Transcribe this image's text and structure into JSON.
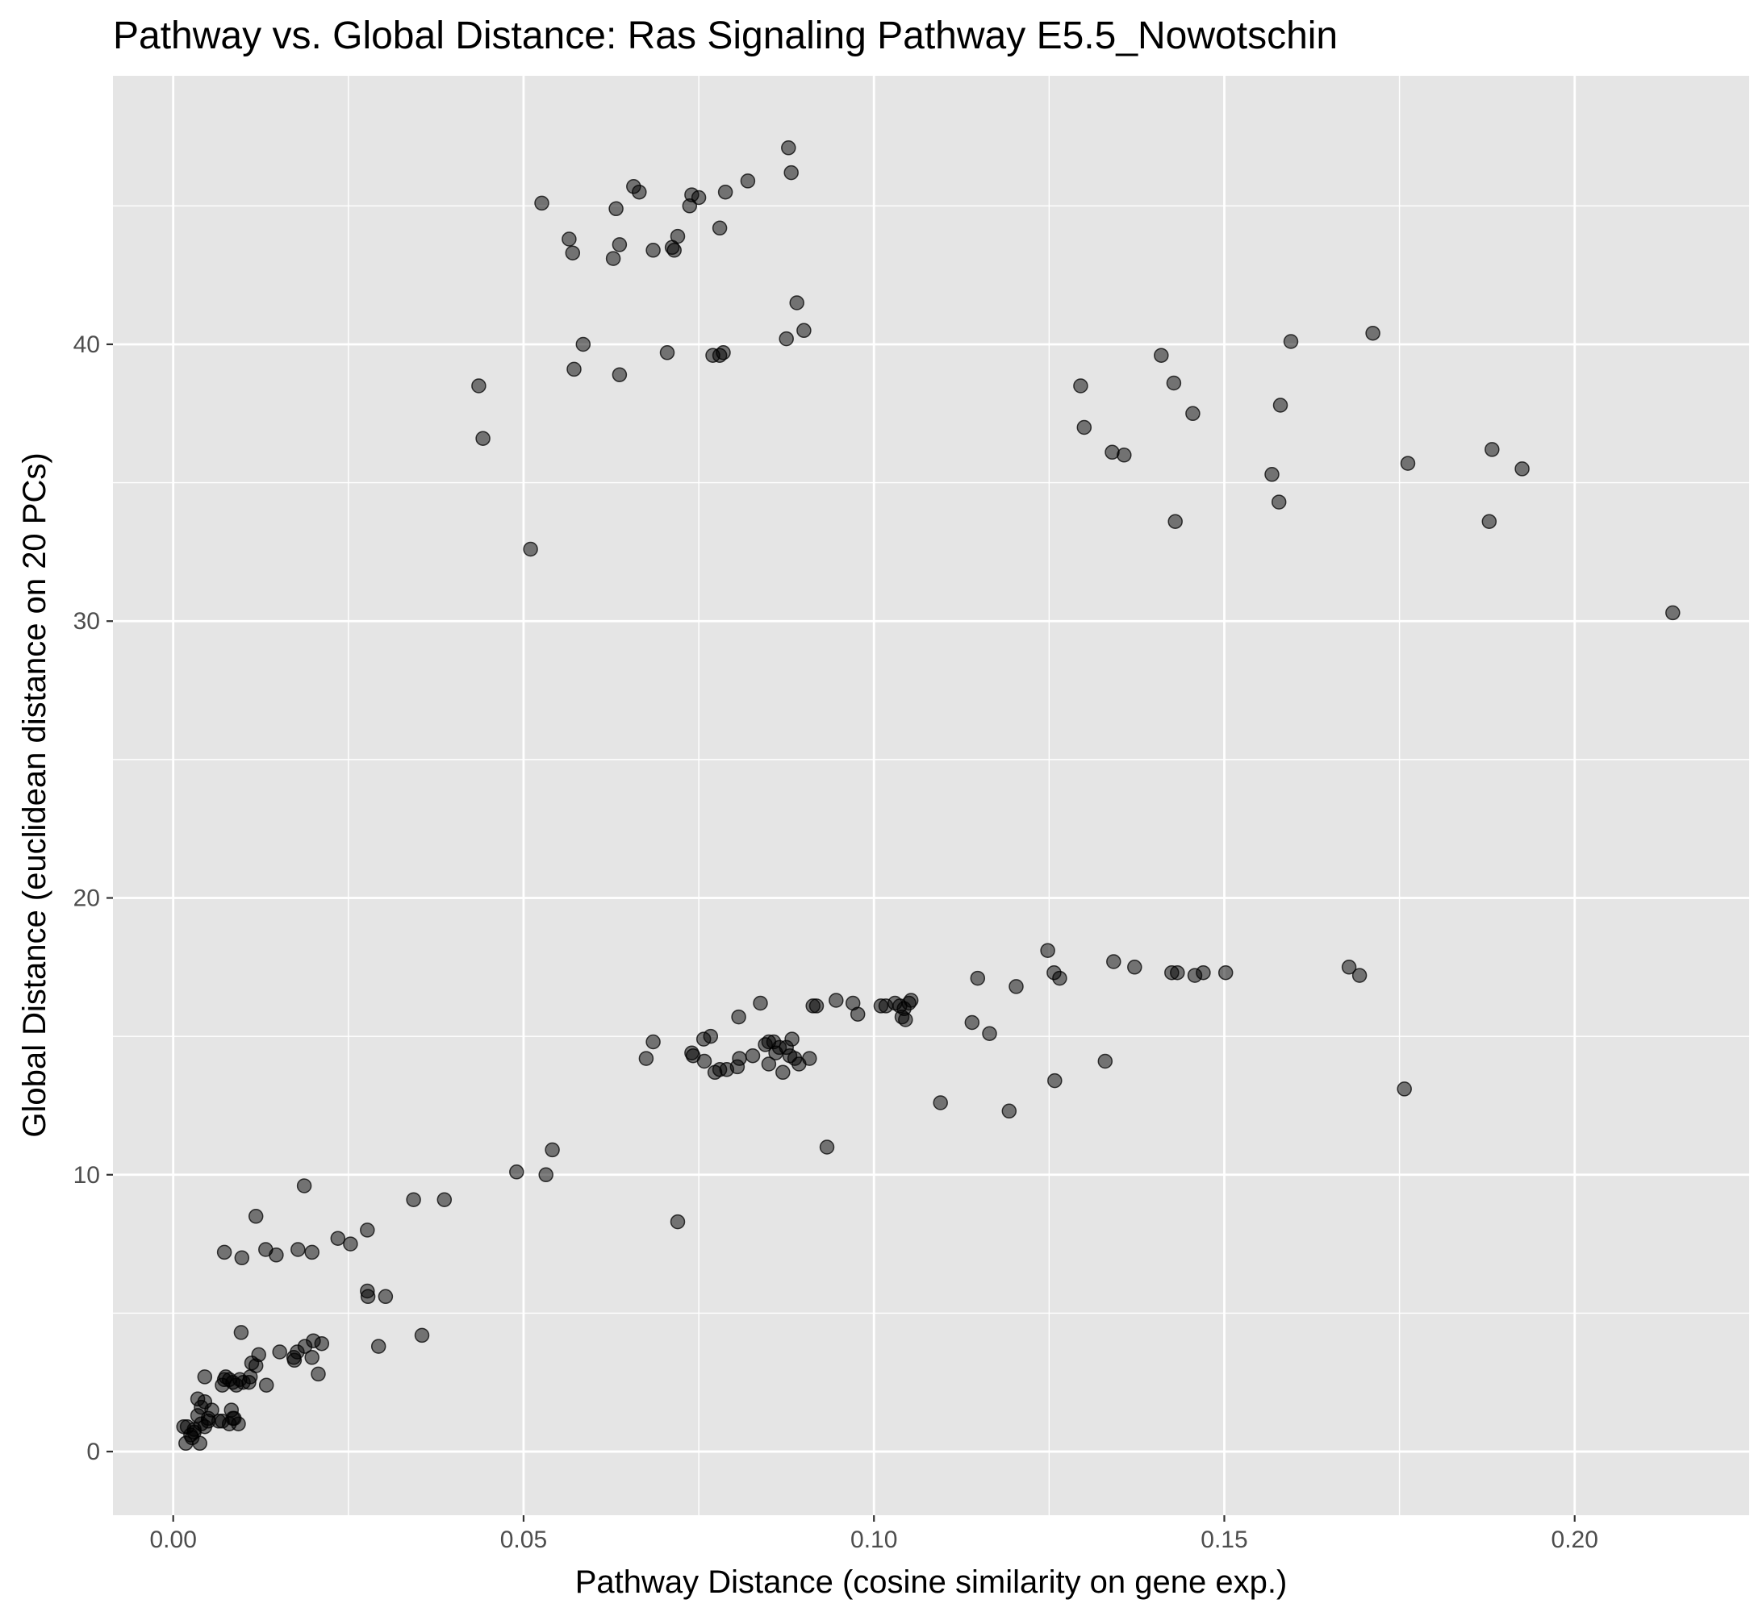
{
  "chart_data": {
    "type": "scatter",
    "title": "Pathway vs. Global Distance: Ras Signaling Pathway  E5.5_Nowotschin",
    "xlabel": "Pathway Distance (cosine similarity on gene exp.)",
    "ylabel": "Global Distance (euclidean distance on 20 PCs)",
    "xlim": [
      -0.0086,
      0.2249
    ],
    "ylim": [
      -2.3,
      49.7
    ],
    "x_ticks": [
      0.0,
      0.05,
      0.1,
      0.15,
      0.2
    ],
    "x_tick_labels": [
      "0.00",
      "0.05",
      "0.10",
      "0.15",
      "0.20"
    ],
    "y_ticks": [
      0,
      10,
      20,
      30,
      40
    ],
    "y_tick_labels": [
      "0",
      "10",
      "20",
      "30",
      "40"
    ],
    "grid": true,
    "background": "#e5e5e5",
    "grid_color": "#ffffff",
    "point_color": "#000000",
    "point_opacity": 0.5,
    "points": [
      [
        0.0878,
        47.1
      ],
      [
        0.0882,
        46.2
      ],
      [
        0.082,
        45.9
      ],
      [
        0.0657,
        45.7
      ],
      [
        0.0665,
        45.5
      ],
      [
        0.074,
        45.4
      ],
      [
        0.075,
        45.3
      ],
      [
        0.0788,
        45.5
      ],
      [
        0.0526,
        45.1
      ],
      [
        0.0737,
        45.0
      ],
      [
        0.0632,
        44.9
      ],
      [
        0.078,
        44.2
      ],
      [
        0.0565,
        43.8
      ],
      [
        0.0637,
        43.6
      ],
      [
        0.072,
        43.9
      ],
      [
        0.0712,
        43.5
      ],
      [
        0.0715,
        43.4
      ],
      [
        0.0685,
        43.4
      ],
      [
        0.057,
        43.3
      ],
      [
        0.0628,
        43.1
      ],
      [
        0.089,
        41.5
      ],
      [
        0.09,
        40.5
      ],
      [
        0.0875,
        40.2
      ],
      [
        0.0585,
        40.0
      ],
      [
        0.0705,
        39.7
      ],
      [
        0.0785,
        39.7
      ],
      [
        0.078,
        39.6
      ],
      [
        0.077,
        39.6
      ],
      [
        0.0572,
        39.1
      ],
      [
        0.0637,
        38.9
      ],
      [
        0.0436,
        38.5
      ],
      [
        0.0442,
        36.6
      ],
      [
        0.051,
        32.6
      ],
      [
        0.141,
        39.6
      ],
      [
        0.1295,
        38.5
      ],
      [
        0.1428,
        38.6
      ],
      [
        0.13,
        37.0
      ],
      [
        0.1455,
        37.5
      ],
      [
        0.134,
        36.1
      ],
      [
        0.1357,
        36.0
      ],
      [
        0.143,
        33.6
      ],
      [
        0.1595,
        40.1
      ],
      [
        0.1712,
        40.4
      ],
      [
        0.158,
        37.8
      ],
      [
        0.1568,
        35.3
      ],
      [
        0.1578,
        34.3
      ],
      [
        0.1762,
        35.7
      ],
      [
        0.1882,
        36.2
      ],
      [
        0.1925,
        35.5
      ],
      [
        0.1878,
        33.6
      ],
      [
        0.214,
        30.3
      ],
      [
        0.1248,
        18.1
      ],
      [
        0.1342,
        17.7
      ],
      [
        0.1372,
        17.5
      ],
      [
        0.1257,
        17.3
      ],
      [
        0.1265,
        17.1
      ],
      [
        0.1148,
        17.1
      ],
      [
        0.1203,
        16.8
      ],
      [
        0.1425,
        17.3
      ],
      [
        0.1433,
        17.3
      ],
      [
        0.1458,
        17.2
      ],
      [
        0.147,
        17.3
      ],
      [
        0.1502,
        17.3
      ],
      [
        0.1678,
        17.5
      ],
      [
        0.1693,
        17.2
      ],
      [
        0.0838,
        16.2
      ],
      [
        0.0918,
        16.1
      ],
      [
        0.0913,
        16.1
      ],
      [
        0.0946,
        16.3
      ],
      [
        0.097,
        16.2
      ],
      [
        0.0977,
        15.8
      ],
      [
        0.101,
        16.1
      ],
      [
        0.1017,
        16.1
      ],
      [
        0.103,
        16.2
      ],
      [
        0.1037,
        16.1
      ],
      [
        0.1043,
        16.0
      ],
      [
        0.105,
        16.2
      ],
      [
        0.1053,
        16.3
      ],
      [
        0.104,
        15.7
      ],
      [
        0.1045,
        15.6
      ],
      [
        0.0807,
        15.7
      ],
      [
        0.114,
        15.5
      ],
      [
        0.1165,
        15.1
      ],
      [
        0.133,
        14.1
      ],
      [
        0.1258,
        13.4
      ],
      [
        0.1757,
        13.1
      ],
      [
        0.1095,
        12.6
      ],
      [
        0.1193,
        12.3
      ],
      [
        0.0685,
        14.8
      ],
      [
        0.0675,
        14.2
      ],
      [
        0.0757,
        14.9
      ],
      [
        0.0767,
        15.0
      ],
      [
        0.074,
        14.4
      ],
      [
        0.0742,
        14.3
      ],
      [
        0.0758,
        14.1
      ],
      [
        0.0773,
        13.7
      ],
      [
        0.078,
        13.8
      ],
      [
        0.079,
        13.8
      ],
      [
        0.0805,
        13.9
      ],
      [
        0.0808,
        14.2
      ],
      [
        0.0827,
        14.3
      ],
      [
        0.0845,
        14.7
      ],
      [
        0.085,
        14.8
      ],
      [
        0.0857,
        14.8
      ],
      [
        0.086,
        14.4
      ],
      [
        0.0865,
        14.6
      ],
      [
        0.087,
        13.7
      ],
      [
        0.0875,
        14.6
      ],
      [
        0.088,
        14.3
      ],
      [
        0.0883,
        14.9
      ],
      [
        0.0887,
        14.2
      ],
      [
        0.0893,
        14.0
      ],
      [
        0.0908,
        14.2
      ],
      [
        0.085,
        14.0
      ],
      [
        0.0933,
        11.0
      ],
      [
        0.072,
        8.3
      ],
      [
        0.0541,
        10.9
      ],
      [
        0.049,
        10.1
      ],
      [
        0.0532,
        10.0
      ],
      [
        0.0343,
        9.1
      ],
      [
        0.0387,
        9.1
      ],
      [
        0.0187,
        9.6
      ],
      [
        0.0118,
        8.5
      ],
      [
        0.0277,
        8.0
      ],
      [
        0.0235,
        7.7
      ],
      [
        0.0253,
        7.5
      ],
      [
        0.0073,
        7.2
      ],
      [
        0.0098,
        7.0
      ],
      [
        0.0132,
        7.3
      ],
      [
        0.0147,
        7.1
      ],
      [
        0.0178,
        7.3
      ],
      [
        0.0198,
        7.2
      ],
      [
        0.0277,
        5.8
      ],
      [
        0.0278,
        5.6
      ],
      [
        0.0303,
        5.6
      ],
      [
        0.0355,
        4.2
      ],
      [
        0.0293,
        3.8
      ],
      [
        0.0097,
        4.3
      ],
      [
        0.02,
        4.0
      ],
      [
        0.0212,
        3.9
      ],
      [
        0.0207,
        2.8
      ],
      [
        0.0188,
        3.8
      ],
      [
        0.0177,
        3.6
      ],
      [
        0.0198,
        3.4
      ],
      [
        0.0172,
        3.4
      ],
      [
        0.0173,
        3.3
      ],
      [
        0.0152,
        3.6
      ],
      [
        0.0122,
        3.5
      ],
      [
        0.0118,
        3.1
      ],
      [
        0.0112,
        3.2
      ],
      [
        0.011,
        2.7
      ],
      [
        0.0108,
        2.5
      ],
      [
        0.0133,
        2.4
      ],
      [
        0.0045,
        2.7
      ],
      [
        0.007,
        2.4
      ],
      [
        0.0073,
        2.6
      ],
      [
        0.0075,
        2.7
      ],
      [
        0.008,
        2.6
      ],
      [
        0.0085,
        2.5
      ],
      [
        0.009,
        2.4
      ],
      [
        0.0095,
        2.6
      ],
      [
        0.01,
        2.5
      ],
      [
        0.0035,
        1.9
      ],
      [
        0.004,
        1.6
      ],
      [
        0.0045,
        1.8
      ],
      [
        0.0055,
        1.5
      ],
      [
        0.005,
        1.2
      ],
      [
        0.0065,
        1.1
      ],
      [
        0.0083,
        1.5
      ],
      [
        0.008,
        1.0
      ],
      [
        0.0087,
        1.2
      ],
      [
        0.0093,
        1.0
      ],
      [
        0.0085,
        1.2
      ],
      [
        0.007,
        1.1
      ],
      [
        0.0035,
        1.3
      ],
      [
        0.004,
        1.0
      ],
      [
        0.0045,
        0.9
      ],
      [
        0.005,
        1.1
      ],
      [
        0.003,
        0.8
      ],
      [
        0.0025,
        0.6
      ],
      [
        0.002,
        0.9
      ],
      [
        0.0015,
        0.9
      ],
      [
        0.0018,
        0.3
      ],
      [
        0.0027,
        0.5
      ],
      [
        0.0038,
        0.3
      ],
      [
        0.003,
        0.7
      ]
    ]
  }
}
